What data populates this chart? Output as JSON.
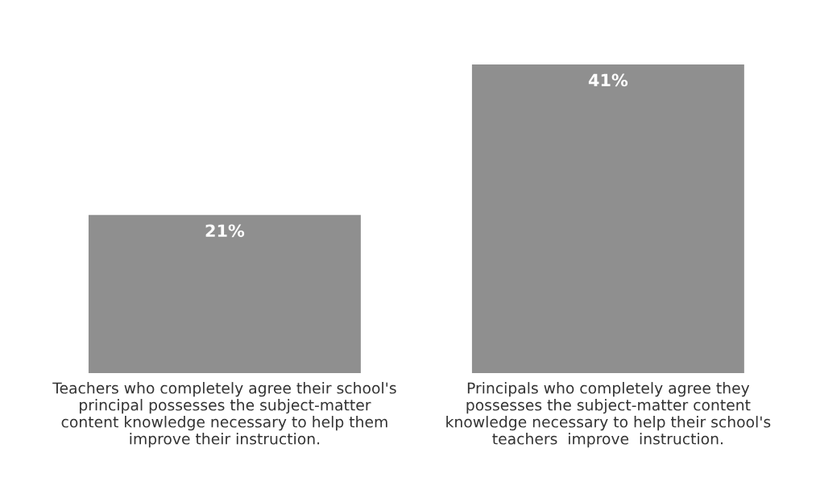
{
  "chart_data": {
    "type": "bar",
    "categories": [
      "Teachers who completely agree their school's\nprincipal possesses the subject-matter\ncontent knowledge necessary to help them\nimprove their instruction.",
      "Principals who completely agree they\npossesses the subject-matter content\nknowledge necessary to help their school's\nteachers  improve  instruction."
    ],
    "values": [
      21,
      41
    ],
    "color": "#8f8f8f",
    "value_labels": [
      "21%",
      "41%"
    ],
    "tick_labels": "x",
    "grid": false,
    "legend": false
  }
}
